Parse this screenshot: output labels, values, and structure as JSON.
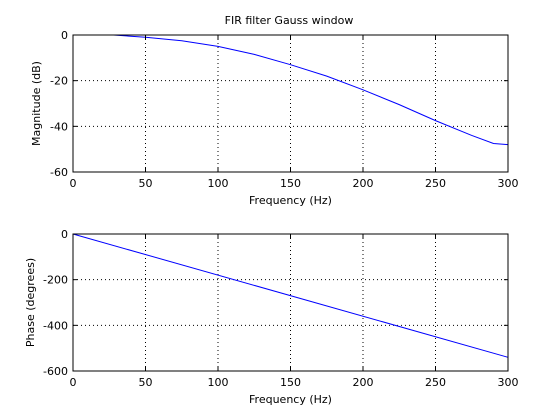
{
  "chart_data": [
    {
      "type": "line",
      "title": "FIR filter Gauss window",
      "xlabel": "Frequency (Hz)",
      "ylabel": "Magnitude (dB)",
      "xlim": [
        0,
        300
      ],
      "ylim": [
        -60,
        0
      ],
      "xticks": [
        0,
        50,
        100,
        150,
        200,
        250,
        300
      ],
      "yticks": [
        -60,
        -40,
        -20,
        0
      ],
      "grid": true,
      "line_color": "#0000ff",
      "series": [
        {
          "x": [
            28,
            50,
            75,
            100,
            125,
            150,
            175,
            200,
            225,
            250,
            275,
            290,
            300
          ],
          "y": [
            0,
            -1,
            -2.5,
            -5,
            -8.5,
            -13,
            -18,
            -24,
            -30.5,
            -37.5,
            -44,
            -47.5,
            -48
          ]
        }
      ]
    },
    {
      "type": "line",
      "title": "",
      "xlabel": "Frequency (Hz)",
      "ylabel": "Phase (degrees)",
      "xlim": [
        0,
        300
      ],
      "ylim": [
        -600,
        0
      ],
      "xticks": [
        0,
        50,
        100,
        150,
        200,
        250,
        300
      ],
      "yticks": [
        -600,
        -400,
        -200,
        0
      ],
      "grid": true,
      "line_color": "#0000ff",
      "series": [
        {
          "x": [
            0,
            300
          ],
          "y": [
            0,
            -540
          ]
        }
      ]
    }
  ]
}
